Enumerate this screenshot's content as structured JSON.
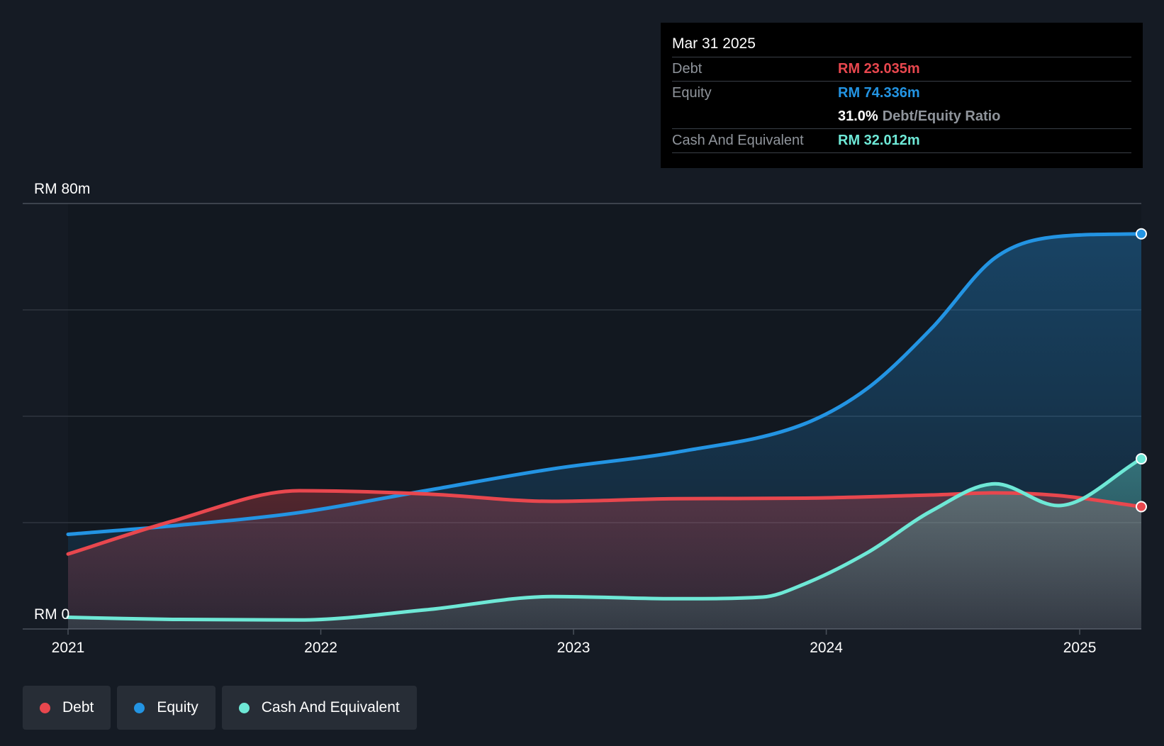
{
  "colors": {
    "debt": "#e8474e",
    "equity": "#2394e3",
    "cash": "#6ee8d6",
    "grid": "#2e353e",
    "axis_text": "#ffffff"
  },
  "tooltip": {
    "date": "Mar 31 2025",
    "debt_label": "Debt",
    "debt_value": "RM 23.035m",
    "equity_label": "Equity",
    "equity_value": "RM 74.336m",
    "ratio_value": "31.0%",
    "ratio_label": "Debt/Equity Ratio",
    "cash_label": "Cash And Equivalent",
    "cash_value": "RM 32.012m"
  },
  "legend": {
    "debt": "Debt",
    "equity": "Equity",
    "cash": "Cash And Equivalent"
  },
  "chart_data": {
    "type": "area",
    "title": "",
    "xlabel": "",
    "ylabel": "",
    "y_tick_labels": [
      "RM 0",
      "RM 80m"
    ],
    "ylim": [
      0,
      80
    ],
    "y_unit": "RM m",
    "x_ticks": [
      "2021",
      "2022",
      "2023",
      "2024",
      "2025"
    ],
    "x_range": [
      "2021-01-01",
      "2025-03-31"
    ],
    "grid": true,
    "legend_position": "bottom-left",
    "series": [
      {
        "name": "Debt",
        "key": "debt",
        "points": [
          [
            "2021-01-01",
            14.1
          ],
          [
            "2021-06-01",
            20.3
          ],
          [
            "2021-12-01",
            26.0
          ],
          [
            "2022-06-01",
            25.4
          ],
          [
            "2022-12-01",
            24.0
          ],
          [
            "2023-06-01",
            24.5
          ],
          [
            "2023-12-01",
            24.6
          ],
          [
            "2024-06-01",
            25.2
          ],
          [
            "2024-09-01",
            25.6
          ],
          [
            "2024-12-01",
            25.1
          ],
          [
            "2025-03-31",
            23.0
          ]
        ]
      },
      {
        "name": "Equity",
        "key": "equity",
        "points": [
          [
            "2021-01-01",
            17.8
          ],
          [
            "2021-06-01",
            19.4
          ],
          [
            "2021-12-01",
            21.9
          ],
          [
            "2022-06-01",
            26.0
          ],
          [
            "2022-12-01",
            30.1
          ],
          [
            "2023-06-01",
            33.3
          ],
          [
            "2023-12-01",
            38.6
          ],
          [
            "2024-03-01",
            45.3
          ],
          [
            "2024-06-01",
            56.5
          ],
          [
            "2024-09-01",
            69.8
          ],
          [
            "2024-12-01",
            73.8
          ],
          [
            "2025-03-31",
            74.3
          ]
        ]
      },
      {
        "name": "Cash And Equivalent",
        "key": "cash",
        "points": [
          [
            "2021-01-01",
            2.2
          ],
          [
            "2021-06-01",
            1.8
          ],
          [
            "2021-12-01",
            1.7
          ],
          [
            "2022-06-01",
            3.6
          ],
          [
            "2022-12-01",
            6.1
          ],
          [
            "2023-06-01",
            5.7
          ],
          [
            "2023-10-01",
            6.0
          ],
          [
            "2023-12-01",
            8.5
          ],
          [
            "2024-03-01",
            14.4
          ],
          [
            "2024-06-01",
            22.2
          ],
          [
            "2024-09-01",
            27.3
          ],
          [
            "2024-12-01",
            23.2
          ],
          [
            "2025-03-31",
            32.0
          ]
        ]
      }
    ]
  }
}
